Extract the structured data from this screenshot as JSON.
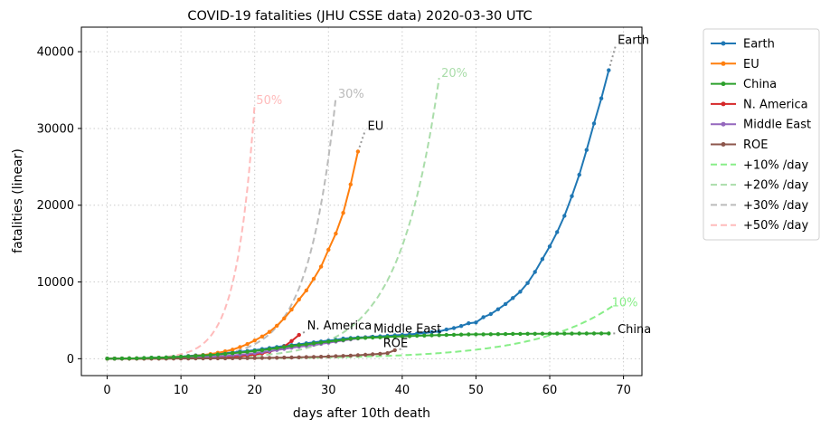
{
  "chart_data": {
    "type": "line",
    "title": "COVID-19 fatalities (JHU CSSE data) 2020-03-30 UTC",
    "xlabel": "days after 10th death",
    "ylabel": "fatalities (linear)",
    "xlim": [
      -3.5,
      72.5
    ],
    "ylim": [
      -2200,
      43200
    ],
    "xticks": [
      0,
      10,
      20,
      30,
      40,
      50,
      60,
      70
    ],
    "yticks": [
      0,
      10000,
      20000,
      30000,
      40000
    ],
    "grid": true,
    "legend_position": "outside-right",
    "series": [
      {
        "name": "Earth",
        "color": "#1f77b4",
        "style": "solid-markers",
        "x": [
          0,
          1,
          2,
          3,
          4,
          5,
          6,
          7,
          8,
          9,
          10,
          11,
          12,
          13,
          14,
          15,
          16,
          17,
          18,
          19,
          20,
          21,
          22,
          23,
          24,
          25,
          26,
          27,
          28,
          29,
          30,
          31,
          32,
          33,
          34,
          35,
          36,
          37,
          38,
          39,
          40,
          41,
          42,
          43,
          44,
          45,
          46,
          47,
          48,
          49,
          50,
          51,
          52,
          53,
          54,
          55,
          56,
          57,
          58,
          59,
          60,
          61,
          62,
          63,
          64,
          65,
          66,
          67,
          68
        ],
        "y": [
          17,
          18,
          26,
          42,
          56,
          82,
          131,
          133,
          171,
          213,
          259,
          362,
          426,
          492,
          564,
          634,
          719,
          806,
          906,
          1013,
          1113,
          1259,
          1380,
          1523,
          1665,
          1770,
          1868,
          2007,
          2122,
          2247,
          2360,
          2460,
          2618,
          2699,
          2763,
          2800,
          2858,
          2923,
          2977,
          3050,
          3110,
          3160,
          3254,
          3348,
          3460,
          3558,
          3802,
          3988,
          4262,
          4615,
          4720,
          5404,
          5819,
          6440,
          7126,
          7905,
          8733,
          9867,
          11299,
          12973,
          14623,
          16497,
          18615,
          21181,
          23970,
          27198,
          30652,
          33925,
          37582
        ]
      },
      {
        "name": "EU",
        "color": "#ff7f0e",
        "style": "solid-markers",
        "x": [
          0,
          1,
          2,
          3,
          4,
          5,
          6,
          7,
          8,
          9,
          10,
          11,
          12,
          13,
          14,
          15,
          16,
          17,
          18,
          19,
          20,
          21,
          22,
          23,
          24,
          25,
          26,
          27,
          28,
          29,
          30,
          31,
          32,
          33,
          34
        ],
        "y": [
          10,
          14,
          20,
          29,
          41,
          55,
          73,
          100,
          130,
          170,
          230,
          300,
          380,
          480,
          610,
          770,
          960,
          1190,
          1520,
          1900,
          2380,
          2900,
          3500,
          4300,
          5250,
          6400,
          7700,
          8900,
          10400,
          12000,
          14200,
          16300,
          19000,
          22700,
          27000
        ]
      },
      {
        "name": "China",
        "color": "#2ca02c",
        "style": "solid-markers",
        "x": [
          0,
          1,
          2,
          3,
          4,
          5,
          6,
          7,
          8,
          9,
          10,
          11,
          12,
          13,
          14,
          15,
          16,
          17,
          18,
          19,
          20,
          21,
          22,
          23,
          24,
          25,
          26,
          27,
          28,
          29,
          30,
          31,
          32,
          33,
          34,
          35,
          36,
          37,
          38,
          39,
          40,
          41,
          42,
          43,
          44,
          45,
          46,
          47,
          48,
          49,
          50,
          51,
          52,
          53,
          54,
          55,
          56,
          57,
          58,
          59,
          60,
          61,
          62,
          63,
          64,
          65,
          66,
          67,
          68
        ],
        "y": [
          17,
          18,
          26,
          42,
          56,
          82,
          131,
          133,
          171,
          213,
          259,
          304,
          362,
          426,
          491,
          563,
          636,
          721,
          805,
          902,
          1011,
          1111,
          1259,
          1381,
          1524,
          1666,
          1772,
          1870,
          2006,
          2121,
          2239,
          2348,
          2445,
          2595,
          2666,
          2718,
          2747,
          2791,
          2838,
          2873,
          2915,
          2946,
          2984,
          3015,
          3045,
          3073,
          3100,
          3123,
          3140,
          3162,
          3173,
          3180,
          3194,
          3204,
          3218,
          3231,
          3242,
          3249,
          3253,
          3261,
          3267,
          3270,
          3274,
          3277,
          3281,
          3285,
          3291,
          3296,
          3300
        ]
      },
      {
        "name": "N. America",
        "color": "#d62728",
        "style": "solid-markers",
        "x": [
          0,
          1,
          2,
          3,
          4,
          5,
          6,
          7,
          8,
          9,
          10,
          11,
          12,
          13,
          14,
          15,
          16,
          17,
          18,
          19,
          20,
          21,
          22,
          23,
          24,
          25,
          26
        ],
        "y": [
          11,
          12,
          14,
          17,
          19,
          22,
          26,
          30,
          36,
          41,
          48,
          57,
          68,
          85,
          108,
          150,
          200,
          260,
          325,
          420,
          540,
          700,
          900,
          1180,
          1600,
          2300,
          3100
        ]
      },
      {
        "name": "Middle East",
        "color": "#9467bd",
        "style": "solid-markers",
        "x": [
          0,
          1,
          2,
          3,
          4,
          5,
          6,
          7,
          8,
          9,
          10,
          11,
          12,
          13,
          14,
          15,
          16,
          17,
          18,
          19,
          20,
          21,
          22,
          23,
          24,
          25,
          26,
          27,
          28,
          29,
          30,
          31,
          32,
          33,
          34,
          35
        ],
        "y": [
          12,
          16,
          19,
          26,
          34,
          43,
          54,
          66,
          77,
          92,
          107,
          124,
          145,
          194,
          237,
          291,
          354,
          429,
          514,
          611,
          724,
          853,
          988,
          1135,
          1284,
          1433,
          1556,
          1685,
          1812,
          1934,
          2077,
          2234,
          2378,
          2517,
          2640,
          2757
        ]
      },
      {
        "name": "ROE",
        "color": "#8c564b",
        "style": "solid-markers",
        "x": [
          0,
          1,
          2,
          3,
          4,
          5,
          6,
          7,
          8,
          9,
          10,
          11,
          12,
          13,
          14,
          15,
          16,
          17,
          18,
          19,
          20,
          21,
          22,
          23,
          24,
          25,
          26,
          27,
          28,
          29,
          30,
          31,
          32,
          33,
          34,
          35,
          36,
          37,
          38,
          39
        ],
        "y": [
          10,
          11,
          12,
          13,
          15,
          16,
          18,
          20,
          22,
          25,
          28,
          31,
          35,
          40,
          45,
          50,
          56,
          63,
          71,
          80,
          90,
          101,
          113,
          127,
          143,
          160,
          180,
          202,
          227,
          255,
          286,
          321,
          360,
          405,
          455,
          511,
          575,
          646,
          727,
          1110
        ]
      },
      {
        "name": "+10% /day",
        "color": "#88ee88",
        "style": "dashed",
        "rate": 0.1,
        "x_range": [
          0,
          69
        ]
      },
      {
        "name": "+20% /day",
        "color": "#aaddaa",
        "style": "dashed",
        "rate": 0.2,
        "x_range": [
          0,
          45
        ]
      },
      {
        "name": "+30% /day",
        "color": "#bbbbbb",
        "style": "dashed",
        "rate": 0.3,
        "x_range": [
          0,
          31
        ]
      },
      {
        "name": "+50% /day",
        "color": "#ffbbbb",
        "style": "dashed",
        "rate": 0.5,
        "x_range": [
          0,
          20
        ]
      }
    ],
    "extensions": [
      {
        "series": "Earth",
        "x": [
          68,
          69
        ],
        "y": [
          37582,
          41000
        ]
      },
      {
        "series": "EU",
        "x": [
          34,
          35
        ],
        "y": [
          27000,
          29800
        ]
      },
      {
        "series": "China",
        "x": [
          68,
          69
        ],
        "y": [
          3300,
          3303
        ]
      },
      {
        "series": "N. America",
        "x": [
          26,
          27
        ],
        "y": [
          3100,
          3600
        ]
      },
      {
        "series": "Middle East",
        "x": [
          35,
          36
        ],
        "y": [
          2757,
          3000
        ]
      },
      {
        "series": "ROE",
        "x": [
          39,
          40
        ],
        "y": [
          1110,
          1300
        ]
      }
    ],
    "annotations": [
      {
        "text": "Earth",
        "x": 69.2,
        "y": 41000,
        "color": "#000000"
      },
      {
        "text": "EU",
        "x": 35.3,
        "y": 29800,
        "color": "#000000"
      },
      {
        "text": "China",
        "x": 69.2,
        "y": 3350,
        "color": "#000000"
      },
      {
        "text": "N. America",
        "x": 27.1,
        "y": 3800,
        "color": "#000000"
      },
      {
        "text": "Middle East",
        "x": 36.1,
        "y": 3400,
        "color": "#000000"
      },
      {
        "text": "ROE",
        "x": 37.4,
        "y": 1500,
        "color": "#000000"
      },
      {
        "text": "10%",
        "x": 68.4,
        "y": 6800,
        "color": "#88ee88"
      },
      {
        "text": "20%",
        "x": 45.3,
        "y": 36700,
        "color": "#aaddaa"
      },
      {
        "text": "30%",
        "x": 31.3,
        "y": 34000,
        "color": "#bbbbbb"
      },
      {
        "text": "50%",
        "x": 20.2,
        "y": 33200,
        "color": "#ffbbbb"
      }
    ]
  }
}
